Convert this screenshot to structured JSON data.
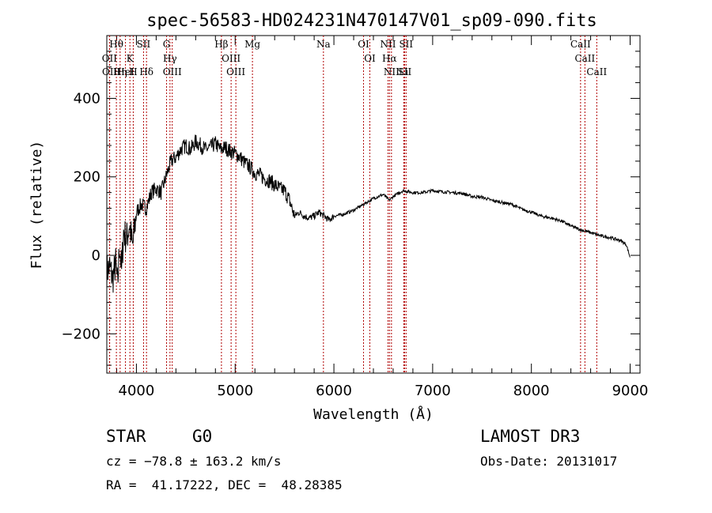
{
  "chart_data": {
    "type": "line",
    "title": "spec-56583-HD024231N470147V01_sp09-090.fits",
    "xlabel": "Wavelength (Å)",
    "ylabel": "Flux (relative)",
    "xlim": [
      3700,
      9100
    ],
    "ylim": [
      -300,
      560
    ],
    "x_ticks": [
      4000,
      5000,
      6000,
      7000,
      8000,
      9000
    ],
    "y_ticks": [
      -200,
      0,
      200,
      400
    ],
    "series": [
      {
        "name": "spectrum",
        "x": [
          3700,
          3730,
          3760,
          3790,
          3810,
          3830,
          3850,
          3870,
          3900,
          3930,
          3960,
          4000,
          4050,
          4100,
          4150,
          4200,
          4250,
          4300,
          4350,
          4400,
          4450,
          4500,
          4550,
          4600,
          4650,
          4700,
          4750,
          4800,
          4850,
          4900,
          4950,
          5000,
          5050,
          5100,
          5150,
          5200,
          5250,
          5300,
          5350,
          5400,
          5450,
          5500,
          5550,
          5600,
          5650,
          5700,
          5750,
          5800,
          5850,
          5900,
          5950,
          6000,
          6100,
          6200,
          6300,
          6400,
          6500,
          6560,
          6600,
          6700,
          6800,
          6900,
          7000,
          7100,
          7200,
          7300,
          7400,
          7500,
          7600,
          7700,
          7800,
          7900,
          8000,
          8100,
          8200,
          8300,
          8400,
          8500,
          8600,
          8700,
          8800,
          8900,
          8960,
          9000
        ],
        "y": [
          -40,
          -30,
          -60,
          -20,
          -80,
          30,
          -40,
          60,
          40,
          80,
          20,
          110,
          130,
          120,
          160,
          170,
          160,
          200,
          240,
          250,
          270,
          280,
          270,
          290,
          280,
          270,
          275,
          285,
          270,
          275,
          265,
          260,
          250,
          235,
          225,
          210,
          205,
          195,
          190,
          180,
          170,
          165,
          140,
          100,
          110,
          100,
          95,
          100,
          110,
          100,
          90,
          100,
          105,
          115,
          130,
          145,
          155,
          140,
          150,
          165,
          160,
          160,
          165,
          162,
          160,
          158,
          150,
          148,
          140,
          135,
          130,
          118,
          110,
          100,
          95,
          88,
          75,
          65,
          58,
          50,
          45,
          38,
          28,
          -5
        ]
      }
    ],
    "spectral_lines": [
      {
        "label": "Hθ",
        "x": 3797
      },
      {
        "label": "OII",
        "x": 3727
      },
      {
        "label": "OII",
        "x": 3729
      },
      {
        "label": "Hη",
        "x": 3835
      },
      {
        "label": "HeI",
        "x": 3889
      },
      {
        "label": "K",
        "x": 3934
      },
      {
        "label": "H",
        "x": 3968
      },
      {
        "label": "SII",
        "x": 4072
      },
      {
        "label": "Hδ",
        "x": 4102
      },
      {
        "label": "G",
        "x": 4305
      },
      {
        "label": "Hγ",
        "x": 4340
      },
      {
        "label": "OIII",
        "x": 4363
      },
      {
        "label": "Hβ",
        "x": 4861
      },
      {
        "label": "OIII",
        "x": 4959
      },
      {
        "label": "OIII",
        "x": 5007
      },
      {
        "label": "Mg",
        "x": 5175
      },
      {
        "label": "Na",
        "x": 5894
      },
      {
        "label": "OI",
        "x": 6300
      },
      {
        "label": "OI",
        "x": 6364
      },
      {
        "label": "NII",
        "x": 6548
      },
      {
        "label": "Hα",
        "x": 6563
      },
      {
        "label": "NII",
        "x": 6583
      },
      {
        "label": "Li",
        "x": 6707
      },
      {
        "label": "SII",
        "x": 6716
      },
      {
        "label": "SII",
        "x": 6731
      },
      {
        "label": "CaII",
        "x": 8498
      },
      {
        "label": "CaII",
        "x": 8542
      },
      {
        "label": "CaII",
        "x": 8662
      }
    ]
  },
  "info": {
    "class": "STAR",
    "subclass": "G0",
    "survey": "LAMOST DR3",
    "redshift": "cz = −78.8 ± 163.2 km/s",
    "obs_date": "Obs-Date: 20131017",
    "coords": "RA =  41.17222, DEC =  48.28385"
  },
  "colors": {
    "lines": "#b00000",
    "ink": "#000000"
  }
}
